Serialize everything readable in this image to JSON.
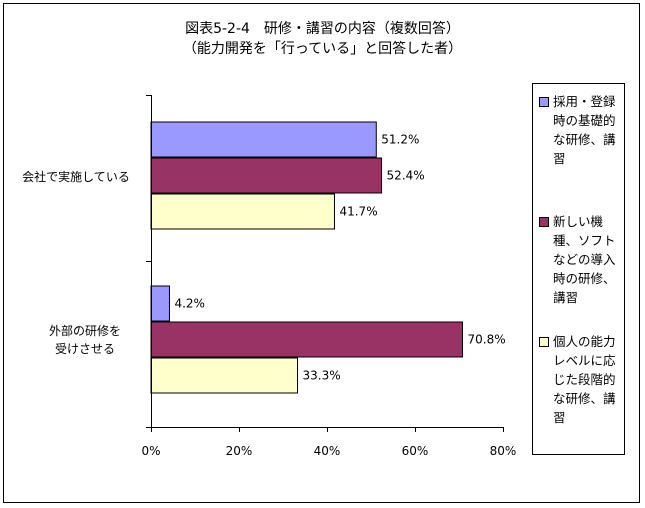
{
  "title_line1": "図表5-2-4　研修・講習の内容（複数回答）",
  "title_line2": "（能力開発を「行っている」と回答した者）",
  "chart_data": {
    "type": "bar",
    "orientation": "horizontal",
    "categories": [
      "会社で実施している",
      "外部の研修を受けさせる"
    ],
    "series": [
      {
        "name": "採用・登録時の基礎的な研修、講習",
        "values": [
          51.2,
          4.2
        ],
        "color": "#9999ff"
      },
      {
        "name": "新しい機種、ソフトなどの導入時の研修、講習",
        "values": [
          52.4,
          70.8
        ],
        "color": "#993366"
      },
      {
        "name": "個人の能力レベルに応じた段階的な研修、講習",
        "values": [
          41.7,
          33.3
        ],
        "color": "#ffffcc"
      }
    ],
    "data_labels": [
      [
        "51.2%",
        "4.2%"
      ],
      [
        "52.4%",
        "70.8%"
      ],
      [
        "41.7%",
        "33.3%"
      ]
    ],
    "xlim": [
      0,
      80
    ],
    "xticks": [
      0,
      20,
      40,
      60,
      80
    ],
    "xtick_labels": [
      "0%",
      "20%",
      "40%",
      "60%",
      "80%"
    ],
    "grid": false,
    "legend_position": "right"
  },
  "category_labels": [
    {
      "lines": [
        "会社で実施している"
      ]
    },
    {
      "lines": [
        "外部の研修を",
        "受けさせる"
      ]
    }
  ]
}
